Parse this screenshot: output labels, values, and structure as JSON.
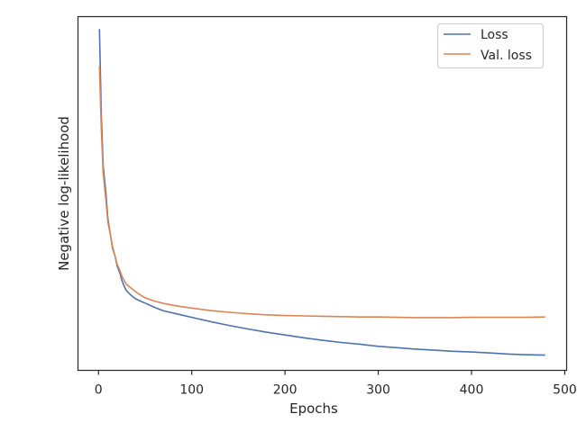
{
  "chart_data": {
    "type": "line",
    "title": "",
    "xlabel": "Epochs",
    "ylabel": "Negative log-likelihood",
    "xlim": [
      -22,
      502
    ],
    "ylim": [
      0,
      1
    ],
    "xticks": [
      0,
      100,
      200,
      300,
      400,
      500
    ],
    "yticks_shown": false,
    "grid": false,
    "legend": "top-right",
    "series": [
      {
        "name": "Loss",
        "color": "#4c72b0",
        "x": [
          1,
          3,
          5,
          8,
          10,
          13,
          15,
          18,
          20,
          23,
          25,
          28,
          30,
          35,
          40,
          45,
          50,
          60,
          70,
          80,
          90,
          100,
          120,
          140,
          160,
          180,
          200,
          220,
          240,
          260,
          280,
          300,
          320,
          340,
          360,
          380,
          400,
          420,
          440,
          460,
          479
        ],
        "y": [
          0.965,
          0.72,
          0.58,
          0.5,
          0.43,
          0.38,
          0.345,
          0.32,
          0.295,
          0.275,
          0.255,
          0.235,
          0.225,
          0.212,
          0.202,
          0.196,
          0.19,
          0.178,
          0.168,
          0.162,
          0.156,
          0.15,
          0.138,
          0.127,
          0.117,
          0.108,
          0.1,
          0.092,
          0.085,
          0.079,
          0.074,
          0.068,
          0.064,
          0.06,
          0.057,
          0.054,
          0.052,
          0.049,
          0.046,
          0.044,
          0.043
        ]
      },
      {
        "name": "Val. loss",
        "color": "#dd8452",
        "x": [
          1,
          3,
          5,
          8,
          10,
          13,
          15,
          18,
          20,
          23,
          25,
          28,
          30,
          35,
          40,
          45,
          50,
          60,
          70,
          80,
          90,
          100,
          120,
          140,
          160,
          180,
          200,
          220,
          240,
          260,
          280,
          300,
          320,
          340,
          360,
          380,
          400,
          420,
          440,
          460,
          479
        ],
        "y": [
          0.86,
          0.68,
          0.56,
          0.48,
          0.42,
          0.38,
          0.35,
          0.32,
          0.3,
          0.282,
          0.267,
          0.252,
          0.243,
          0.232,
          0.222,
          0.213,
          0.205,
          0.196,
          0.189,
          0.184,
          0.18,
          0.176,
          0.169,
          0.164,
          0.16,
          0.157,
          0.155,
          0.154,
          0.153,
          0.152,
          0.151,
          0.151,
          0.15,
          0.149,
          0.149,
          0.149,
          0.15,
          0.15,
          0.15,
          0.15,
          0.151
        ]
      }
    ]
  }
}
